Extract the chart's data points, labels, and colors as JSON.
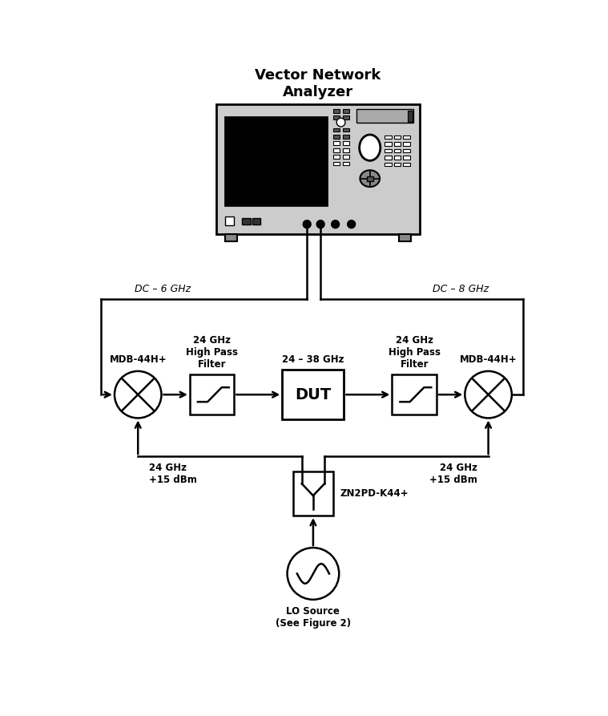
{
  "title": "Vector Network\nAnalyzer",
  "bg_color": "#ffffff",
  "line_color": "#000000",
  "labels": {
    "dc_6ghz": "DC – 6 GHz",
    "dc_8ghz": "DC – 8 GHz",
    "mdb_left": "MDB-44H+",
    "mdb_right": "MDB-44H+",
    "hpf_left_title": "24 GHz\nHigh Pass\nFilter",
    "hpf_right_title": "24 GHz\nHigh Pass\nFilter",
    "dut_label": "DUT",
    "dut_freq": "24 – 38 GHz",
    "lo_left": "24 GHz\n+15 dBm",
    "lo_right": "24 GHz\n+15 dBm",
    "splitter_label": "ZN2PD-K44+",
    "lo_source": "LO Source\n(See Figure 2)"
  }
}
